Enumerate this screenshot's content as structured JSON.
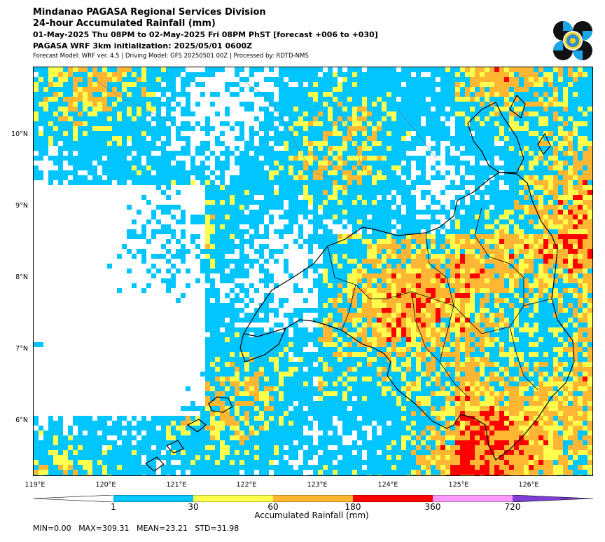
{
  "header": {
    "title": "Mindanao PAGASA Regional Services Division",
    "subtitle": "24-hour Accumulated Rainfall (mm)",
    "period": "01-May-2025 Thu 08PM to 02-May-2025 Fri 08PM PhST [forecast +006 to +030]",
    "init": "PAGASA WRF 3km initialization: 2025/05/01 0600Z",
    "model_info": "Forecast Model: WRF ver. 4.5 | Driving Model: GFS 20250501 00Z | Processed by: RDTD-NMS"
  },
  "logo": {
    "icon": "pagasa-seal-icon"
  },
  "axes": {
    "lat_labels": [
      "10°N",
      "9°N",
      "8°N",
      "7°N",
      "6°N"
    ],
    "lat_values": [
      10,
      9,
      8,
      7,
      6
    ],
    "lon_labels": [
      "119°E",
      "120°E",
      "121°E",
      "122°E",
      "123°E",
      "124°E",
      "125°E",
      "126°E"
    ],
    "lon_values": [
      119,
      120,
      121,
      122,
      123,
      124,
      125,
      126
    ],
    "lon_range": [
      119,
      126.9
    ],
    "lat_range": [
      5.2,
      10.95
    ]
  },
  "colorbar": {
    "title": "Accumulated Rainfall (mm)",
    "levels": [
      "1",
      "30",
      "60",
      "180",
      "360",
      "720"
    ],
    "colors": {
      "lt1": "#ffffff",
      "c1": "#00c5ff",
      "c30": "#ffff4d",
      "c60": "#ffb733",
      "c180": "#ff0000",
      "c360": "#ff99ff",
      "c720": "#7e3fd6"
    }
  },
  "stats": {
    "min": "MIN=0.00",
    "max": "MAX=309.31",
    "mean": "MEAN=23.21",
    "std": "STD=31.98"
  }
}
